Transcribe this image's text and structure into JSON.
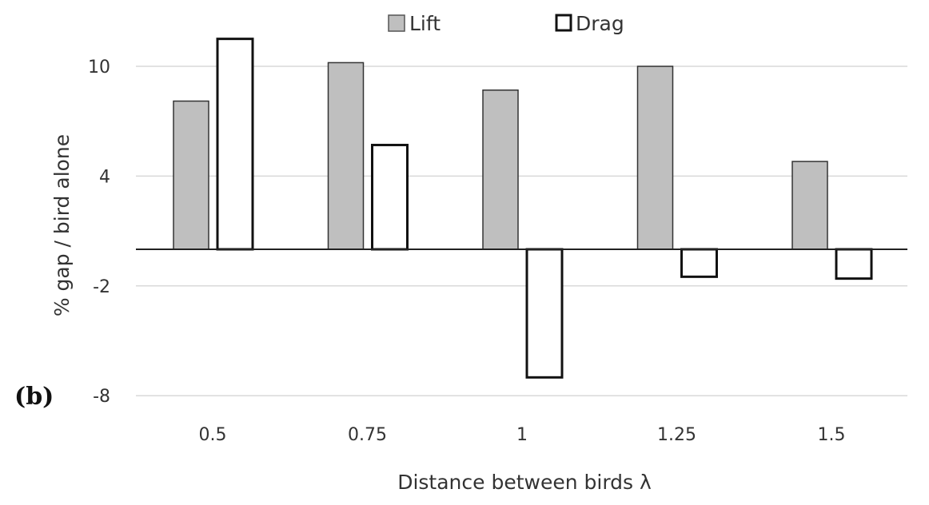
{
  "panel_label": "(b)",
  "chart_data": {
    "type": "bar",
    "categories": [
      "0.5",
      "0.75",
      "1",
      "1.25",
      "1.5"
    ],
    "series": [
      {
        "name": "Lift",
        "values": [
          8.1,
          10.2,
          8.7,
          10.0,
          4.8
        ],
        "fill": "#bfbfbf",
        "stroke": "#333333"
      },
      {
        "name": "Drag",
        "values": [
          11.5,
          5.7,
          -7.0,
          -1.5,
          -1.6
        ],
        "fill": "#ffffff",
        "stroke": "#111111"
      }
    ],
    "xlabel": "Distance between birds λ",
    "ylabel": "% gap / bird alone",
    "yticks": [
      10,
      4,
      -2,
      -8
    ],
    "ylim": [
      -8,
      11.5
    ],
    "grid": true,
    "legend": "top-center"
  }
}
